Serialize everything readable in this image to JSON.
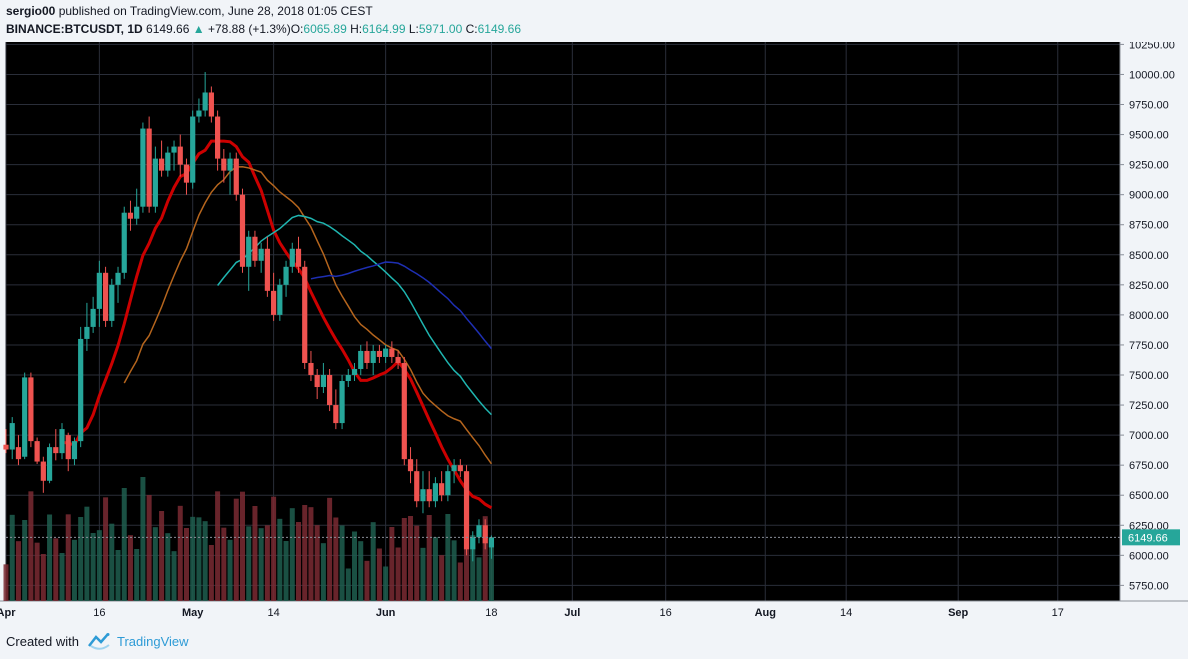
{
  "header": {
    "user": "sergio00",
    "published": "published on TradingView.com, June 28, 2018 01:05 CEST",
    "symbol": "BINANCE:BTCUSDT, 1D",
    "last": "6149.66",
    "arrow": "▲",
    "change": "+78.88 (+1.3%)",
    "o_label": "O:",
    "o_value": "6065.89",
    "h_label": "H:",
    "h_value": "6164.99",
    "l_label": "L:",
    "l_value": "5971.00",
    "c_label": "C:",
    "c_value": "6149.66"
  },
  "footer": {
    "created": "Created with",
    "brand": "TradingView"
  },
  "colors": {
    "up": "#26a69a",
    "down": "#ef5350",
    "background": "#000000",
    "accent": "#2e9bd6"
  },
  "chart_data": {
    "type": "candlestick",
    "y_ticks": [
      "10250.00",
      "10000.00",
      "9750.00",
      "9500.00",
      "9250.00",
      "9000.00",
      "8750.00",
      "8500.00",
      "8250.00",
      "8000.00",
      "7750.00",
      "7500.00",
      "7250.00",
      "7000.00",
      "6750.00",
      "6500.00",
      "6250.00",
      "6000.00",
      "5750.00"
    ],
    "y_range": [
      5620,
      10270
    ],
    "x_labels": [
      {
        "label": "Apr",
        "day": 0
      },
      {
        "label": "16",
        "day": 15
      },
      {
        "label": "May",
        "day": 30
      },
      {
        "label": "14",
        "day": 43
      },
      {
        "label": "Jun",
        "day": 61
      },
      {
        "label": "18",
        "day": 78
      },
      {
        "label": "Jul",
        "day": 91
      },
      {
        "label": "16",
        "day": 106
      },
      {
        "label": "Aug",
        "day": 122
      },
      {
        "label": "14",
        "day": 135
      },
      {
        "label": "Sep",
        "day": 153
      },
      {
        "label": "17",
        "day": 169
      }
    ],
    "x_range_days": [
      0,
      179
    ],
    "last_price_label": "6149.66",
    "last_price": 6149.66,
    "candles": [
      {
        "d": 0,
        "o": 6920,
        "h": 7050,
        "l": 6850,
        "c": 6880
      },
      {
        "d": 1,
        "o": 6880,
        "h": 7150,
        "l": 6800,
        "c": 7100
      },
      {
        "d": 2,
        "o": 6900,
        "h": 7000,
        "l": 6750,
        "c": 6800
      },
      {
        "d": 3,
        "o": 6820,
        "h": 7520,
        "l": 6800,
        "c": 7480
      },
      {
        "d": 4,
        "o": 7480,
        "h": 7520,
        "l": 6900,
        "c": 6950
      },
      {
        "d": 5,
        "o": 6950,
        "h": 6980,
        "l": 6760,
        "c": 6780
      },
      {
        "d": 6,
        "o": 6780,
        "h": 6820,
        "l": 6520,
        "c": 6620
      },
      {
        "d": 7,
        "o": 6620,
        "h": 6930,
        "l": 6600,
        "c": 6900
      },
      {
        "d": 8,
        "o": 6900,
        "h": 7050,
        "l": 6790,
        "c": 6850
      },
      {
        "d": 9,
        "o": 6850,
        "h": 7100,
        "l": 6800,
        "c": 7050
      },
      {
        "d": 10,
        "o": 7000,
        "h": 7020,
        "l": 6700,
        "c": 6800
      },
      {
        "d": 11,
        "o": 6800,
        "h": 6980,
        "l": 6750,
        "c": 6950
      },
      {
        "d": 12,
        "o": 6950,
        "h": 7900,
        "l": 6900,
        "c": 7800
      },
      {
        "d": 13,
        "o": 7800,
        "h": 8100,
        "l": 7700,
        "c": 7900
      },
      {
        "d": 14,
        "o": 7900,
        "h": 8150,
        "l": 7850,
        "c": 8050
      },
      {
        "d": 15,
        "o": 8050,
        "h": 8450,
        "l": 7900,
        "c": 8350
      },
      {
        "d": 16,
        "o": 8350,
        "h": 8400,
        "l": 7900,
        "c": 7950
      },
      {
        "d": 17,
        "o": 7950,
        "h": 8300,
        "l": 7900,
        "c": 8250
      },
      {
        "d": 18,
        "o": 8250,
        "h": 8400,
        "l": 8100,
        "c": 8350
      },
      {
        "d": 19,
        "o": 8350,
        "h": 8900,
        "l": 8300,
        "c": 8850
      },
      {
        "d": 20,
        "o": 8850,
        "h": 8950,
        "l": 8700,
        "c": 8800
      },
      {
        "d": 21,
        "o": 8800,
        "h": 9050,
        "l": 8750,
        "c": 8900
      },
      {
        "d": 22,
        "o": 8900,
        "h": 9600,
        "l": 8850,
        "c": 9550
      },
      {
        "d": 23,
        "o": 9550,
        "h": 9650,
        "l": 8850,
        "c": 8900
      },
      {
        "d": 24,
        "o": 8900,
        "h": 9400,
        "l": 8850,
        "c": 9300
      },
      {
        "d": 25,
        "o": 9300,
        "h": 9450,
        "l": 9150,
        "c": 9200
      },
      {
        "d": 26,
        "o": 9200,
        "h": 9400,
        "l": 9150,
        "c": 9350
      },
      {
        "d": 27,
        "o": 9350,
        "h": 9450,
        "l": 9200,
        "c": 9400
      },
      {
        "d": 28,
        "o": 9400,
        "h": 9500,
        "l": 9150,
        "c": 9250
      },
      {
        "d": 29,
        "o": 9250,
        "h": 9300,
        "l": 9000,
        "c": 9100
      },
      {
        "d": 30,
        "o": 9100,
        "h": 9700,
        "l": 9050,
        "c": 9650
      },
      {
        "d": 31,
        "o": 9650,
        "h": 9800,
        "l": 9600,
        "c": 9700
      },
      {
        "d": 32,
        "o": 9700,
        "h": 10020,
        "l": 9650,
        "c": 9850
      },
      {
        "d": 33,
        "o": 9850,
        "h": 9900,
        "l": 9600,
        "c": 9650
      },
      {
        "d": 34,
        "o": 9650,
        "h": 9700,
        "l": 9200,
        "c": 9300
      },
      {
        "d": 35,
        "o": 9300,
        "h": 9380,
        "l": 9100,
        "c": 9200
      },
      {
        "d": 36,
        "o": 9200,
        "h": 9350,
        "l": 9000,
        "c": 9300
      },
      {
        "d": 37,
        "o": 9300,
        "h": 9350,
        "l": 8950,
        "c": 9000
      },
      {
        "d": 38,
        "o": 9000,
        "h": 9050,
        "l": 8350,
        "c": 8400
      },
      {
        "d": 39,
        "o": 8400,
        "h": 8700,
        "l": 8200,
        "c": 8650
      },
      {
        "d": 40,
        "o": 8650,
        "h": 8700,
        "l": 8400,
        "c": 8450
      },
      {
        "d": 41,
        "o": 8450,
        "h": 8600,
        "l": 8350,
        "c": 8550
      },
      {
        "d": 42,
        "o": 8550,
        "h": 8650,
        "l": 8150,
        "c": 8200
      },
      {
        "d": 43,
        "o": 8200,
        "h": 8350,
        "l": 7950,
        "c": 8000
      },
      {
        "d": 44,
        "o": 8000,
        "h": 8300,
        "l": 7950,
        "c": 8250
      },
      {
        "d": 45,
        "o": 8250,
        "h": 8450,
        "l": 8150,
        "c": 8400
      },
      {
        "d": 46,
        "o": 8400,
        "h": 8600,
        "l": 8350,
        "c": 8550
      },
      {
        "d": 47,
        "o": 8550,
        "h": 8650,
        "l": 8350,
        "c": 8400
      },
      {
        "d": 48,
        "o": 8400,
        "h": 8450,
        "l": 7550,
        "c": 7600
      },
      {
        "d": 49,
        "o": 7600,
        "h": 7700,
        "l": 7450,
        "c": 7500
      },
      {
        "d": 50,
        "o": 7500,
        "h": 7550,
        "l": 7300,
        "c": 7400
      },
      {
        "d": 51,
        "o": 7400,
        "h": 7600,
        "l": 7350,
        "c": 7500
      },
      {
        "d": 52,
        "o": 7500,
        "h": 7550,
        "l": 7200,
        "c": 7250
      },
      {
        "d": 53,
        "o": 7250,
        "h": 7380,
        "l": 7050,
        "c": 7100
      },
      {
        "d": 54,
        "o": 7100,
        "h": 7500,
        "l": 7050,
        "c": 7450
      },
      {
        "d": 55,
        "o": 7450,
        "h": 7550,
        "l": 7400,
        "c": 7500
      },
      {
        "d": 56,
        "o": 7500,
        "h": 7600,
        "l": 7450,
        "c": 7550
      },
      {
        "d": 57,
        "o": 7550,
        "h": 7750,
        "l": 7500,
        "c": 7700
      },
      {
        "d": 58,
        "o": 7700,
        "h": 7780,
        "l": 7550,
        "c": 7600
      },
      {
        "d": 59,
        "o": 7600,
        "h": 7750,
        "l": 7500,
        "c": 7700
      },
      {
        "d": 60,
        "o": 7700,
        "h": 7750,
        "l": 7600,
        "c": 7650
      },
      {
        "d": 61,
        "o": 7650,
        "h": 7750,
        "l": 7600,
        "c": 7720
      },
      {
        "d": 62,
        "o": 7720,
        "h": 7780,
        "l": 7600,
        "c": 7650
      },
      {
        "d": 63,
        "o": 7650,
        "h": 7700,
        "l": 7550,
        "c": 7600
      },
      {
        "d": 64,
        "o": 7600,
        "h": 7650,
        "l": 6750,
        "c": 6800
      },
      {
        "d": 65,
        "o": 6800,
        "h": 6900,
        "l": 6600,
        "c": 6700
      },
      {
        "d": 66,
        "o": 6700,
        "h": 6800,
        "l": 6400,
        "c": 6450
      },
      {
        "d": 67,
        "o": 6450,
        "h": 6700,
        "l": 6350,
        "c": 6550
      },
      {
        "d": 68,
        "o": 6550,
        "h": 6700,
        "l": 6400,
        "c": 6450
      },
      {
        "d": 69,
        "o": 6450,
        "h": 6650,
        "l": 6400,
        "c": 6600
      },
      {
        "d": 70,
        "o": 6600,
        "h": 6700,
        "l": 6450,
        "c": 6500
      },
      {
        "d": 71,
        "o": 6500,
        "h": 6750,
        "l": 6450,
        "c": 6700
      },
      {
        "d": 72,
        "o": 6700,
        "h": 6800,
        "l": 6600,
        "c": 6750
      },
      {
        "d": 73,
        "o": 6750,
        "h": 6800,
        "l": 6650,
        "c": 6700
      },
      {
        "d": 74,
        "o": 6700,
        "h": 6750,
        "l": 6000,
        "c": 6050
      },
      {
        "d": 75,
        "o": 6050,
        "h": 6200,
        "l": 5950,
        "c": 6150
      },
      {
        "d": 76,
        "o": 6150,
        "h": 6300,
        "l": 6100,
        "c": 6250
      },
      {
        "d": 77,
        "o": 6250,
        "h": 6300,
        "l": 6050,
        "c": 6100
      },
      {
        "d": 78,
        "o": 6065.89,
        "h": 6164.99,
        "l": 5971,
        "c": 6149.66
      }
    ]
  }
}
